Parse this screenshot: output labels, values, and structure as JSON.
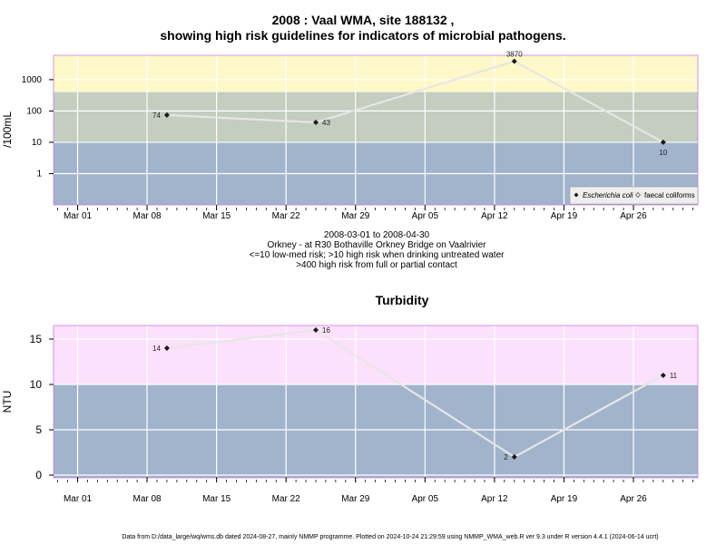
{
  "title_line1": "2008 : Vaal WMA, site 188132 ,",
  "title_line2": "showing high risk guidelines for indicators of microbial pathogens.",
  "caption": [
    "2008-03-01 to 2008-04-30",
    "Orkney - at R30 Bothaville Orkney Bridge on Vaalrivier",
    "<=10 low-med risk; >10 high risk when drinking untreated water",
    ">400 high risk from full or partial contact"
  ],
  "footer": "Data from D:/data_large/wq/wms.db dated 2024-08-27, mainly NMMP programme. Plotted on 2024-10-24 21:29:59 using NMMP_WMA_web.R ver 9.3 under R version 4.4.1 (2024-06-14 ucrt)",
  "colors": {
    "yellow_band": "#fff8c8",
    "green_band": "#c3cdc0",
    "blue_band": "#a2b3cc",
    "pink_band": "#fde0fc",
    "line": "#e6e6e6",
    "marker": "#1a1a1a"
  },
  "chart_data": [
    {
      "type": "line",
      "name": "pathogens",
      "title": "",
      "ylabel": "/100mL",
      "y_scale": "log",
      "ylim": [
        0.1,
        6000
      ],
      "x_ticks": [
        "2008-03-01",
        "2008-03-08",
        "2008-03-15",
        "2008-03-22",
        "2008-03-29",
        "2008-04-05",
        "2008-04-12",
        "2008-04-19",
        "2008-04-26"
      ],
      "x_tick_labels": [
        "Mar 01",
        "Mar 08",
        "Mar 15",
        "Mar 22",
        "Mar 29",
        "Apr 05",
        "Apr 12",
        "Apr 19",
        "Apr 26"
      ],
      "y_ticks": [
        1,
        10,
        100,
        1000
      ],
      "y_tick_labels": [
        "1",
        "10",
        "100",
        "1000"
      ],
      "bands": [
        {
          "from": 400,
          "to": 6000,
          "color": "#fff8c8"
        },
        {
          "from": 10,
          "to": 400,
          "color": "#c3cdc0"
        },
        {
          "from": 0.1,
          "to": 10,
          "color": "#a2b3cc"
        }
      ],
      "legend": {
        "position": "bottom-right",
        "entries": [
          "Escherichia coli",
          "faecal coliforms"
        ]
      },
      "series": [
        {
          "name": "Escherichia coli",
          "x": [
            "2008-03-10",
            "2008-03-25",
            "2008-04-14",
            "2008-04-29"
          ],
          "y": [
            74,
            43,
            3870,
            10
          ],
          "labels": [
            "74",
            "43",
            "3870",
            "10"
          ]
        }
      ]
    },
    {
      "type": "line",
      "name": "turbidity",
      "title": "Turbidity",
      "ylabel": "NTU",
      "y_scale": "linear",
      "ylim": [
        -0.3,
        16.5
      ],
      "x_ticks": [
        "2008-03-01",
        "2008-03-08",
        "2008-03-15",
        "2008-03-22",
        "2008-03-29",
        "2008-04-05",
        "2008-04-12",
        "2008-04-19",
        "2008-04-26"
      ],
      "x_tick_labels": [
        "Mar 01",
        "Mar 08",
        "Mar 15",
        "Mar 22",
        "Mar 29",
        "Apr 05",
        "Apr 12",
        "Apr 19",
        "Apr 26"
      ],
      "y_ticks": [
        0,
        5,
        10,
        15
      ],
      "y_tick_labels": [
        "0",
        "5",
        "10",
        "15"
      ],
      "bands": [
        {
          "from": 10,
          "to": 16.5,
          "color": "#fde0fc"
        },
        {
          "from": -0.3,
          "to": 10,
          "color": "#a2b3cc"
        }
      ],
      "series": [
        {
          "name": "",
          "x": [
            "2008-03-10",
            "2008-03-25",
            "2008-04-14",
            "2008-04-29"
          ],
          "y": [
            14,
            16,
            2,
            11
          ],
          "labels": [
            "14",
            "16",
            "2",
            "11"
          ]
        }
      ]
    }
  ]
}
